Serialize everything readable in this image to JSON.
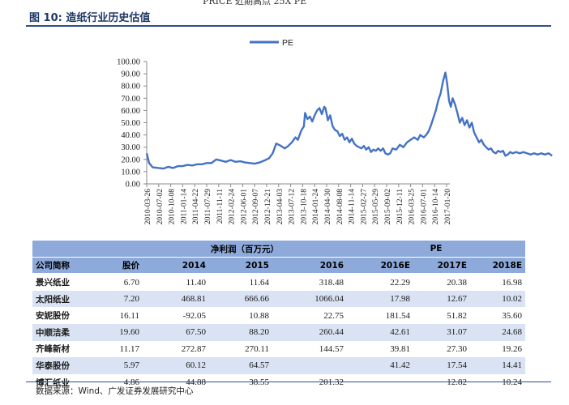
{
  "top_snippet": "PRICE 近期高点 25X PE",
  "figure_title": "图 10:  造纸行业历史估值",
  "chart_data": {
    "type": "line",
    "title": "",
    "xlabel": "",
    "ylabel": "",
    "ylim": [
      0,
      100
    ],
    "yticks": [
      "0.00",
      "10.00",
      "20.00",
      "30.00",
      "40.00",
      "50.00",
      "60.00",
      "70.00",
      "80.00",
      "90.00",
      "100.00"
    ],
    "legend_position": "top-center",
    "grid": false,
    "x_ticks": [
      "2010-03-26",
      "2010-07-02",
      "2010-10-08",
      "2011-01-14",
      "2011-04-22",
      "2011-07-29",
      "2011-11-11",
      "2012-02-24",
      "2012-06-01",
      "2012-09-07",
      "2012-12-21",
      "2013-04-03",
      "2013-07-12",
      "2013-10-18",
      "2014-01-24",
      "2014-04-30",
      "2014-08-08",
      "2014-11-14",
      "2015-02-27",
      "2015-05-29",
      "2015-09-02",
      "2015-12-11",
      "2016-03-25",
      "2016-07-01",
      "2016-10-14",
      "2017-01-20"
    ],
    "series": [
      {
        "name": "PE",
        "color": "#4472c4",
        "values": [
          [
            0,
            25
          ],
          [
            0.2,
            17
          ],
          [
            0.5,
            13.5
          ],
          [
            1,
            13
          ],
          [
            1.4,
            12.5
          ],
          [
            1.8,
            14
          ],
          [
            2.2,
            13
          ],
          [
            2.6,
            14.5
          ],
          [
            3,
            14.5
          ],
          [
            3.4,
            15.5
          ],
          [
            3.8,
            15
          ],
          [
            4.2,
            16
          ],
          [
            4.6,
            16
          ],
          [
            5,
            17
          ],
          [
            5.4,
            17
          ],
          [
            5.8,
            20
          ],
          [
            6.2,
            19
          ],
          [
            6.6,
            18
          ],
          [
            7,
            19.5
          ],
          [
            7.4,
            18
          ],
          [
            7.8,
            18.5
          ],
          [
            8.2,
            17.5
          ],
          [
            8.6,
            17
          ],
          [
            9,
            16.5
          ],
          [
            9.4,
            17.5
          ],
          [
            9.8,
            19
          ],
          [
            10.2,
            21
          ],
          [
            10.5,
            25
          ],
          [
            10.8,
            33
          ],
          [
            11.2,
            31
          ],
          [
            11.5,
            29
          ],
          [
            11.8,
            31
          ],
          [
            12.1,
            34
          ],
          [
            12.4,
            38
          ],
          [
            12.6,
            36
          ],
          [
            12.9,
            44
          ],
          [
            13.1,
            47
          ],
          [
            13.2,
            58
          ],
          [
            13.4,
            53
          ],
          [
            13.6,
            55
          ],
          [
            13.8,
            51
          ],
          [
            14,
            56
          ],
          [
            14.2,
            60
          ],
          [
            14.4,
            62
          ],
          [
            14.6,
            57
          ],
          [
            14.8,
            63
          ],
          [
            14.9,
            62
          ],
          [
            15.1,
            52
          ],
          [
            15.3,
            56
          ],
          [
            15.5,
            47
          ],
          [
            15.7,
            44
          ],
          [
            15.9,
            43
          ],
          [
            16.1,
            39
          ],
          [
            16.3,
            41
          ],
          [
            16.5,
            36
          ],
          [
            16.7,
            38
          ],
          [
            16.9,
            34
          ],
          [
            17.1,
            37
          ],
          [
            17.3,
            33
          ],
          [
            17.5,
            31
          ],
          [
            17.7,
            30
          ],
          [
            17.9,
            29
          ],
          [
            18.1,
            31
          ],
          [
            18.3,
            28
          ],
          [
            18.5,
            30
          ],
          [
            18.7,
            26
          ],
          [
            18.9,
            28
          ],
          [
            19.1,
            27
          ],
          [
            19.3,
            29
          ],
          [
            19.5,
            27
          ],
          [
            19.7,
            29
          ],
          [
            19.9,
            25
          ],
          [
            20.1,
            24
          ],
          [
            20.3,
            25
          ],
          [
            20.5,
            29
          ],
          [
            20.8,
            28
          ],
          [
            21.1,
            32
          ],
          [
            21.4,
            30
          ],
          [
            21.7,
            34
          ],
          [
            22,
            36
          ],
          [
            22.3,
            38
          ],
          [
            22.6,
            36
          ],
          [
            22.8,
            40
          ],
          [
            23.1,
            38
          ],
          [
            23.3,
            40
          ],
          [
            23.5,
            43
          ],
          [
            23.7,
            48
          ],
          [
            23.9,
            54
          ],
          [
            24.1,
            60
          ],
          [
            24.3,
            68
          ],
          [
            24.5,
            74
          ],
          [
            24.7,
            84
          ],
          [
            24.9,
            91
          ],
          [
            25.05,
            82
          ],
          [
            25.2,
            68
          ],
          [
            25.35,
            63
          ],
          [
            25.5,
            70
          ],
          [
            25.7,
            65
          ],
          [
            25.9,
            58
          ],
          [
            26.1,
            50
          ],
          [
            26.3,
            54
          ],
          [
            26.5,
            48
          ],
          [
            26.7,
            52
          ],
          [
            26.9,
            46
          ],
          [
            27.1,
            50
          ],
          [
            27.3,
            42
          ],
          [
            27.5,
            38
          ],
          [
            27.7,
            34
          ],
          [
            27.9,
            36
          ],
          [
            28.1,
            32
          ],
          [
            28.3,
            30
          ],
          [
            28.5,
            28
          ],
          [
            28.7,
            29
          ],
          [
            28.9,
            26
          ],
          [
            29.1,
            25
          ],
          [
            29.3,
            27
          ],
          [
            29.5,
            26
          ],
          [
            29.7,
            27
          ],
          [
            29.9,
            23
          ],
          [
            30.1,
            24
          ],
          [
            30.3,
            26
          ],
          [
            30.5,
            25
          ],
          [
            30.8,
            26
          ],
          [
            31.1,
            25
          ],
          [
            31.4,
            26
          ],
          [
            31.7,
            25
          ],
          [
            32,
            24
          ],
          [
            32.3,
            25
          ],
          [
            32.6,
            24
          ],
          [
            32.9,
            25
          ],
          [
            33.2,
            24
          ],
          [
            33.5,
            25
          ],
          [
            33.8,
            23
          ]
        ]
      }
    ]
  },
  "table": {
    "group_headers": {
      "net_profit": "净利润（百万元）",
      "pe": "PE"
    },
    "columns": [
      "公司简称",
      "股价",
      "2014",
      "2015",
      "2016",
      "2016E",
      "2017E",
      "2018E"
    ],
    "rows": [
      {
        "name": "景兴纸业",
        "price": "6.70",
        "np2014": "11.40",
        "np2015": "11.64",
        "np2016": "318.48",
        "pe2016": "22.29",
        "pe2017": "20.38",
        "pe2018": "16.98"
      },
      {
        "name": "太阳纸业",
        "price": "7.20",
        "np2014": "468.81",
        "np2015": "666.66",
        "np2016": "1066.04",
        "pe2016": "17.98",
        "pe2017": "12.67",
        "pe2018": "10.02"
      },
      {
        "name": "安妮股份",
        "price": "16.11",
        "np2014": "-92.05",
        "np2015": "10.88",
        "np2016": "22.75",
        "pe2016": "181.54",
        "pe2017": "51.82",
        "pe2018": "35.60"
      },
      {
        "name": "中顺洁柔",
        "price": "19.60",
        "np2014": "67.50",
        "np2015": "88.20",
        "np2016": "260.44",
        "pe2016": "42.61",
        "pe2017": "31.07",
        "pe2018": "24.68"
      },
      {
        "name": "齐峰新材",
        "price": "11.17",
        "np2014": "272.87",
        "np2015": "270.11",
        "np2016": "144.57",
        "pe2016": "39.81",
        "pe2017": "27.30",
        "pe2018": "19.26"
      },
      {
        "name": "华泰股份",
        "price": "5.97",
        "np2014": "60.12",
        "np2015": "64.57",
        "np2016": "",
        "pe2016": "41.42",
        "pe2017": "17.54",
        "pe2018": "14.41"
      },
      {
        "name": "博汇纸业",
        "price": "4.86",
        "np2014": "44.88",
        "np2015": "38.55",
        "np2016": "201.32",
        "pe2016": "",
        "pe2017": "12.82",
        "pe2018": "10.24"
      }
    ]
  },
  "source": "数据来源：Wind、广发证券发展研究中心"
}
